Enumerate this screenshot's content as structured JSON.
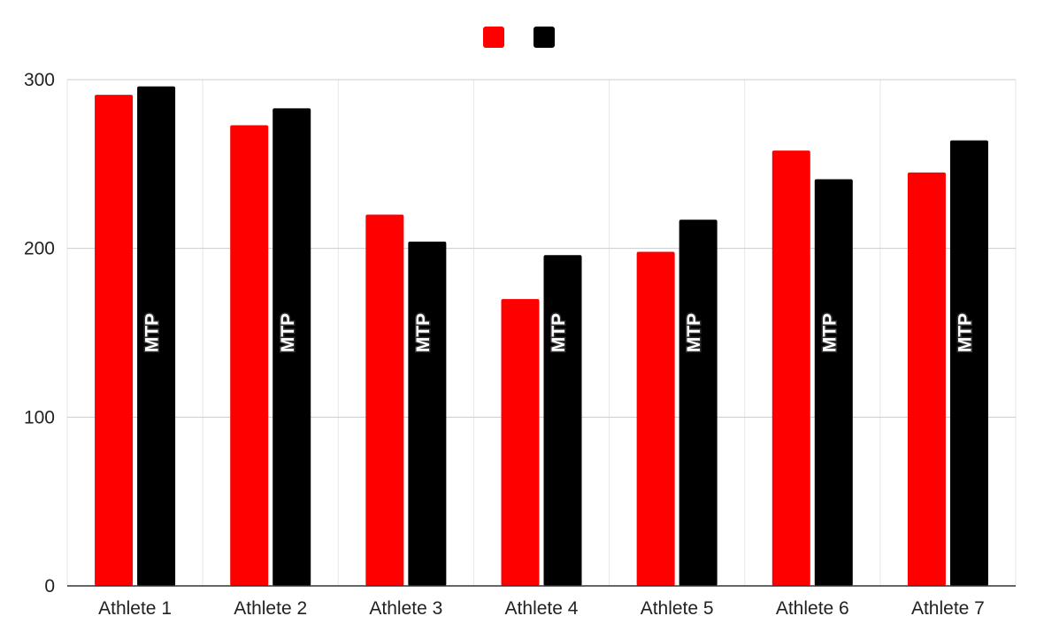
{
  "chart_data": {
    "type": "bar",
    "categories": [
      "Athlete 1",
      "Athlete 2",
      "Athlete 3",
      "Athlete 4",
      "Athlete 5",
      "Athlete 6",
      "Athlete 7"
    ],
    "series": [
      {
        "values": [
          291,
          273,
          220,
          170,
          198,
          258,
          245
        ],
        "color": "#ff0000"
      },
      {
        "values": [
          296,
          283,
          204,
          196,
          217,
          241,
          264
        ],
        "color": "#000000"
      }
    ],
    "bar_annotation": "MTP",
    "ylim": [
      0,
      300
    ],
    "yticks": [
      0,
      100,
      200,
      300
    ],
    "grid": true,
    "legend_position": "top"
  }
}
